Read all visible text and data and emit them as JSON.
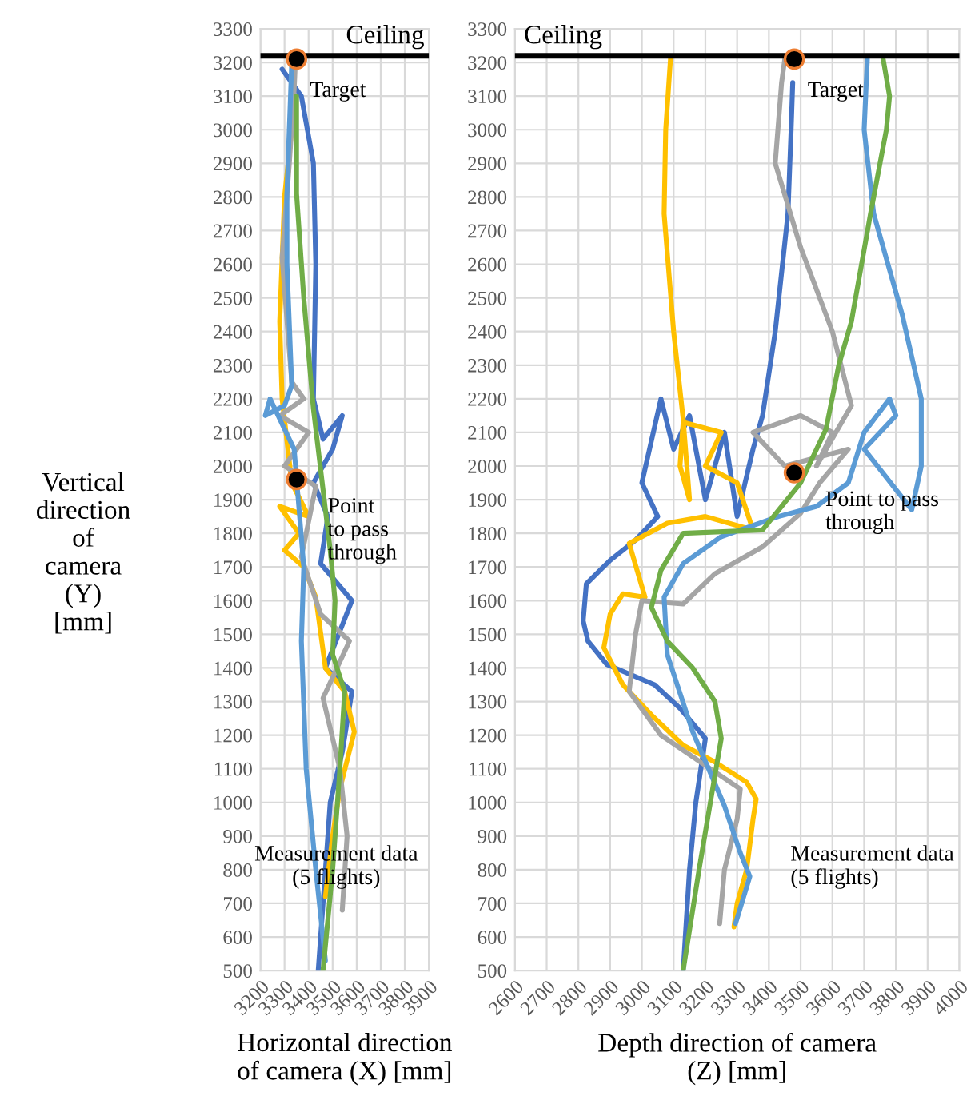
{
  "chart_data": [
    {
      "type": "line",
      "xlabel": "Horizontal direction\nof camera (X) [mm]",
      "ylabel": "Vertical\ndirection\nof\ncamera\n(Y)\n[mm]",
      "xlim": [
        3200,
        3900
      ],
      "xticks": [
        3200,
        3300,
        3400,
        3500,
        3600,
        3700,
        3800,
        3900
      ],
      "ylim": [
        500,
        3300
      ],
      "yticks": [
        500,
        600,
        700,
        800,
        900,
        1000,
        1100,
        1200,
        1300,
        1400,
        1500,
        1600,
        1700,
        1800,
        1900,
        2000,
        2100,
        2200,
        2300,
        2400,
        2500,
        2600,
        2700,
        2800,
        2900,
        3000,
        3100,
        3200,
        3300
      ],
      "grid": true,
      "legend": false,
      "line_style": "solid",
      "ref_lines": [
        {
          "axis": "y",
          "value": 3220,
          "label": "Ceiling",
          "color": "#000000"
        }
      ],
      "annotations": [
        "Target",
        "Point\nto pass\nthrough",
        "Measurement data\n(5 flights)"
      ],
      "series": [
        {
          "color": "#4472c4",
          "x": [
            3440,
            3470,
            3490,
            3540,
            3580,
            3470,
            3580,
            3450,
            3480,
            3420,
            3500,
            3540,
            3460,
            3420,
            3430,
            3420,
            3370,
            3290
          ],
          "values": [
            500,
            800,
            1000,
            1150,
            1330,
            1400,
            1600,
            1710,
            1850,
            1950,
            2050,
            2150,
            2080,
            2200,
            2600,
            2900,
            3100,
            3180
          ]
        },
        {
          "color": "#ffc000",
          "x": [
            3470,
            3500,
            3530,
            3590,
            3550,
            3470,
            3430,
            3380,
            3300,
            3360,
            3280,
            3400,
            3330,
            3290,
            3280,
            3300,
            3330,
            3340
          ],
          "values": [
            720,
            900,
            1040,
            1210,
            1330,
            1400,
            1610,
            1700,
            1750,
            1800,
            1880,
            1850,
            1950,
            2200,
            2430,
            2800,
            3000,
            3200
          ]
        },
        {
          "color": "#a5a5a5",
          "x": [
            3540,
            3560,
            3530,
            3460,
            3570,
            3450,
            3370,
            3430,
            3300,
            3400,
            3280,
            3380,
            3330,
            3290,
            3320,
            3340,
            3345
          ],
          "values": [
            680,
            900,
            1100,
            1310,
            1480,
            1560,
            1730,
            1940,
            2000,
            2100,
            2150,
            2200,
            2250,
            2620,
            2900,
            3120,
            3200
          ]
        },
        {
          "color": "#5b9bd5",
          "x": [
            3470,
            3430,
            3390,
            3370,
            3380,
            3340,
            3240,
            3220,
            3300,
            3330,
            3310,
            3310,
            3330
          ],
          "values": [
            530,
            800,
            1100,
            1480,
            1700,
            2050,
            2200,
            2150,
            2180,
            2240,
            2600,
            2810,
            3200
          ]
        },
        {
          "color": "#70ad47",
          "x": [
            3460,
            3500,
            3530,
            3550,
            3500,
            3510,
            3490,
            3420,
            3380,
            3350,
            3350
          ],
          "values": [
            500,
            800,
            1100,
            1330,
            1440,
            1600,
            1750,
            2170,
            2500,
            2810,
            3100
          ]
        },
        {
          "type": "scatter",
          "marker": "circle",
          "color": "#000000",
          "x": [
            3350,
            3350
          ],
          "values": [
            3210,
            1960
          ]
        }
      ]
    },
    {
      "type": "line",
      "xlabel": "Depth direction of camera\n(Z) [mm]",
      "xlim": [
        2600,
        4000
      ],
      "xticks": [
        2600,
        2700,
        2800,
        2900,
        3000,
        3100,
        3200,
        3300,
        3400,
        3500,
        3600,
        3700,
        3800,
        3900,
        4000
      ],
      "ylim": [
        500,
        3300
      ],
      "yticks": [
        500,
        600,
        700,
        800,
        900,
        1000,
        1100,
        1200,
        1300,
        1400,
        1500,
        1600,
        1700,
        1800,
        1900,
        2000,
        2100,
        2200,
        2300,
        2400,
        2500,
        2600,
        2700,
        2800,
        2900,
        3000,
        3100,
        3200,
        3300
      ],
      "grid": true,
      "legend": false,
      "line_style": "solid",
      "ref_lines": [
        {
          "axis": "y",
          "value": 3220,
          "label": "Ceiling",
          "color": "#000000"
        }
      ],
      "annotations": [
        "Target",
        "Point to pass\nthrough",
        "Measurement data\n(5 flights)"
      ],
      "series": [
        {
          "color": "#4472c4",
          "x": [
            3130,
            3150,
            3170,
            3200,
            3120,
            3040,
            2890,
            2830,
            2815,
            2825,
            2900,
            2980,
            3050,
            3000,
            3060,
            3100,
            3150,
            3200,
            3260,
            3300,
            3350,
            3380,
            3420,
            3460,
            3470,
            3475
          ],
          "values": [
            500,
            800,
            1000,
            1190,
            1280,
            1350,
            1410,
            1480,
            1540,
            1650,
            1720,
            1780,
            1850,
            1950,
            2200,
            2050,
            2150,
            1900,
            2100,
            1850,
            2050,
            2150,
            2400,
            2750,
            3000,
            3140
          ]
        },
        {
          "color": "#ffc000",
          "x": [
            3290,
            3300,
            3330,
            3350,
            3360,
            3330,
            3230,
            3130,
            3030,
            2940,
            2880,
            2900,
            2940,
            3010,
            2960,
            3080,
            3200,
            3350,
            3300,
            3200,
            3250,
            3130,
            3120,
            3150,
            3130,
            3100,
            3070,
            3075,
            3090
          ],
          "values": [
            630,
            700,
            800,
            950,
            1010,
            1060,
            1120,
            1170,
            1260,
            1350,
            1460,
            1560,
            1620,
            1610,
            1770,
            1830,
            1850,
            1810,
            1950,
            2000,
            2100,
            2130,
            2000,
            1900,
            2140,
            2400,
            2750,
            3000,
            3210
          ]
        },
        {
          "color": "#a5a5a5",
          "x": [
            3245,
            3260,
            3300,
            3310,
            3200,
            3060,
            2960,
            2980,
            3000,
            3130,
            3230,
            3380,
            3500,
            3560,
            3650,
            3450,
            3350,
            3500,
            3600,
            3550,
            3660,
            3600,
            3500,
            3420,
            3440,
            3450
          ],
          "values": [
            640,
            800,
            950,
            1040,
            1110,
            1200,
            1330,
            1500,
            1600,
            1590,
            1680,
            1760,
            1860,
            1950,
            2050,
            2000,
            2100,
            2150,
            2100,
            2000,
            2180,
            2400,
            2650,
            2900,
            3140,
            3210
          ]
        },
        {
          "color": "#5b9bd5",
          "x": [
            3295,
            3340,
            3310,
            3260,
            3160,
            3080,
            3070,
            3130,
            3250,
            3430,
            3550,
            3650,
            3700,
            3780,
            3800,
            3700,
            3850,
            3880,
            3880,
            3820,
            3730,
            3700,
            3710
          ],
          "values": [
            640,
            780,
            850,
            990,
            1210,
            1440,
            1610,
            1710,
            1790,
            1850,
            1880,
            1950,
            2100,
            2200,
            2150,
            2050,
            1870,
            2000,
            2200,
            2450,
            2750,
            3000,
            3210
          ]
        },
        {
          "color": "#70ad47",
          "x": [
            3130,
            3180,
            3230,
            3250,
            3230,
            3160,
            3080,
            3030,
            3060,
            3130,
            3380,
            3500,
            3580,
            3620,
            3660,
            3720,
            3770,
            3780,
            3760
          ],
          "values": [
            500,
            800,
            1080,
            1190,
            1300,
            1400,
            1480,
            1580,
            1690,
            1800,
            1810,
            1950,
            2110,
            2300,
            2430,
            2750,
            3000,
            3100,
            3210
          ]
        },
        {
          "type": "scatter",
          "marker": "circle",
          "color": "#000000",
          "x": [
            3480,
            3480
          ],
          "values": [
            3210,
            1980
          ]
        }
      ]
    }
  ]
}
